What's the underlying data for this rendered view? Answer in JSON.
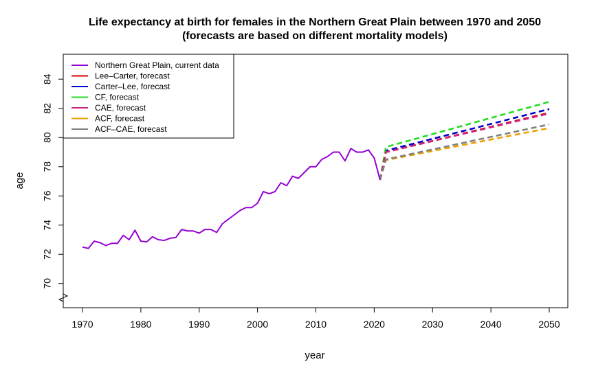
{
  "chart_data": {
    "type": "line",
    "title": "Life expectancy at birth for females in the Northern Great Plain between 1970 and 2050",
    "subtitle": "(forecasts are based on different mortality models)",
    "xlabel": "year",
    "ylabel": "age",
    "xlim": [
      1970,
      2050
    ],
    "ylim": [
      69,
      85
    ],
    "x_ticks": [
      1970,
      1980,
      1990,
      2000,
      2010,
      2020,
      2030,
      2040,
      2050
    ],
    "y_ticks": [
      70,
      72,
      74,
      76,
      78,
      80,
      82,
      84
    ],
    "axis_break": true,
    "legend_position": "top-left",
    "series": [
      {
        "name": "Northern Great Plain, current data",
        "color": "#9400D3",
        "dashed": false,
        "x": [
          1970,
          1971,
          1972,
          1973,
          1974,
          1975,
          1976,
          1977,
          1978,
          1979,
          1980,
          1981,
          1982,
          1983,
          1984,
          1985,
          1986,
          1987,
          1988,
          1989,
          1990,
          1991,
          1992,
          1993,
          1994,
          1995,
          1996,
          1997,
          1998,
          1999,
          2000,
          2001,
          2002,
          2003,
          2004,
          2005,
          2006,
          2007,
          2008,
          2009,
          2010,
          2011,
          2012,
          2013,
          2014,
          2015,
          2016,
          2017,
          2018,
          2019,
          2020,
          2021
        ],
        "y": [
          72.5,
          72.4,
          72.9,
          72.8,
          72.6,
          72.75,
          72.75,
          73.3,
          73.0,
          73.65,
          72.9,
          72.85,
          73.2,
          73.0,
          72.95,
          73.1,
          73.15,
          73.7,
          73.6,
          73.6,
          73.45,
          73.7,
          73.7,
          73.5,
          74.1,
          74.4,
          74.7,
          75.0,
          75.2,
          75.2,
          75.5,
          76.3,
          76.15,
          76.3,
          76.9,
          76.7,
          77.35,
          77.2,
          77.6,
          78.0,
          78.0,
          78.5,
          78.7,
          79.0,
          79.0,
          78.4,
          79.25,
          79.0,
          79.0,
          79.15,
          78.6,
          77.1
        ]
      },
      {
        "name": "Lee–Carter, forecast",
        "color": "#DD0000",
        "dashed": true,
        "x": [
          2021,
          2022,
          2050
        ],
        "y": [
          77.1,
          79.0,
          81.7
        ]
      },
      {
        "name": "Carter–Lee, forecast",
        "color": "#0000CC",
        "dashed": true,
        "x": [
          2021,
          2022,
          2050
        ],
        "y": [
          77.1,
          79.1,
          81.95
        ]
      },
      {
        "name": "CF, forecast",
        "color": "#22DD22",
        "dashed": true,
        "x": [
          2021,
          2022,
          2050
        ],
        "y": [
          77.1,
          79.35,
          82.45
        ]
      },
      {
        "name": "CAE, forecast",
        "color": "#CC2277",
        "dashed": true,
        "x": [
          2021,
          2022,
          2050
        ],
        "y": [
          77.1,
          79.0,
          81.65
        ]
      },
      {
        "name": "ACF, forecast",
        "color": "#EEA000",
        "dashed": true,
        "x": [
          2021,
          2022,
          2050
        ],
        "y": [
          77.1,
          78.45,
          80.65
        ]
      },
      {
        "name": "ACF–CAE, forecast",
        "color": "#808080",
        "dashed": true,
        "x": [
          2021,
          2022,
          2050
        ],
        "y": [
          77.1,
          78.5,
          80.9
        ]
      }
    ]
  }
}
